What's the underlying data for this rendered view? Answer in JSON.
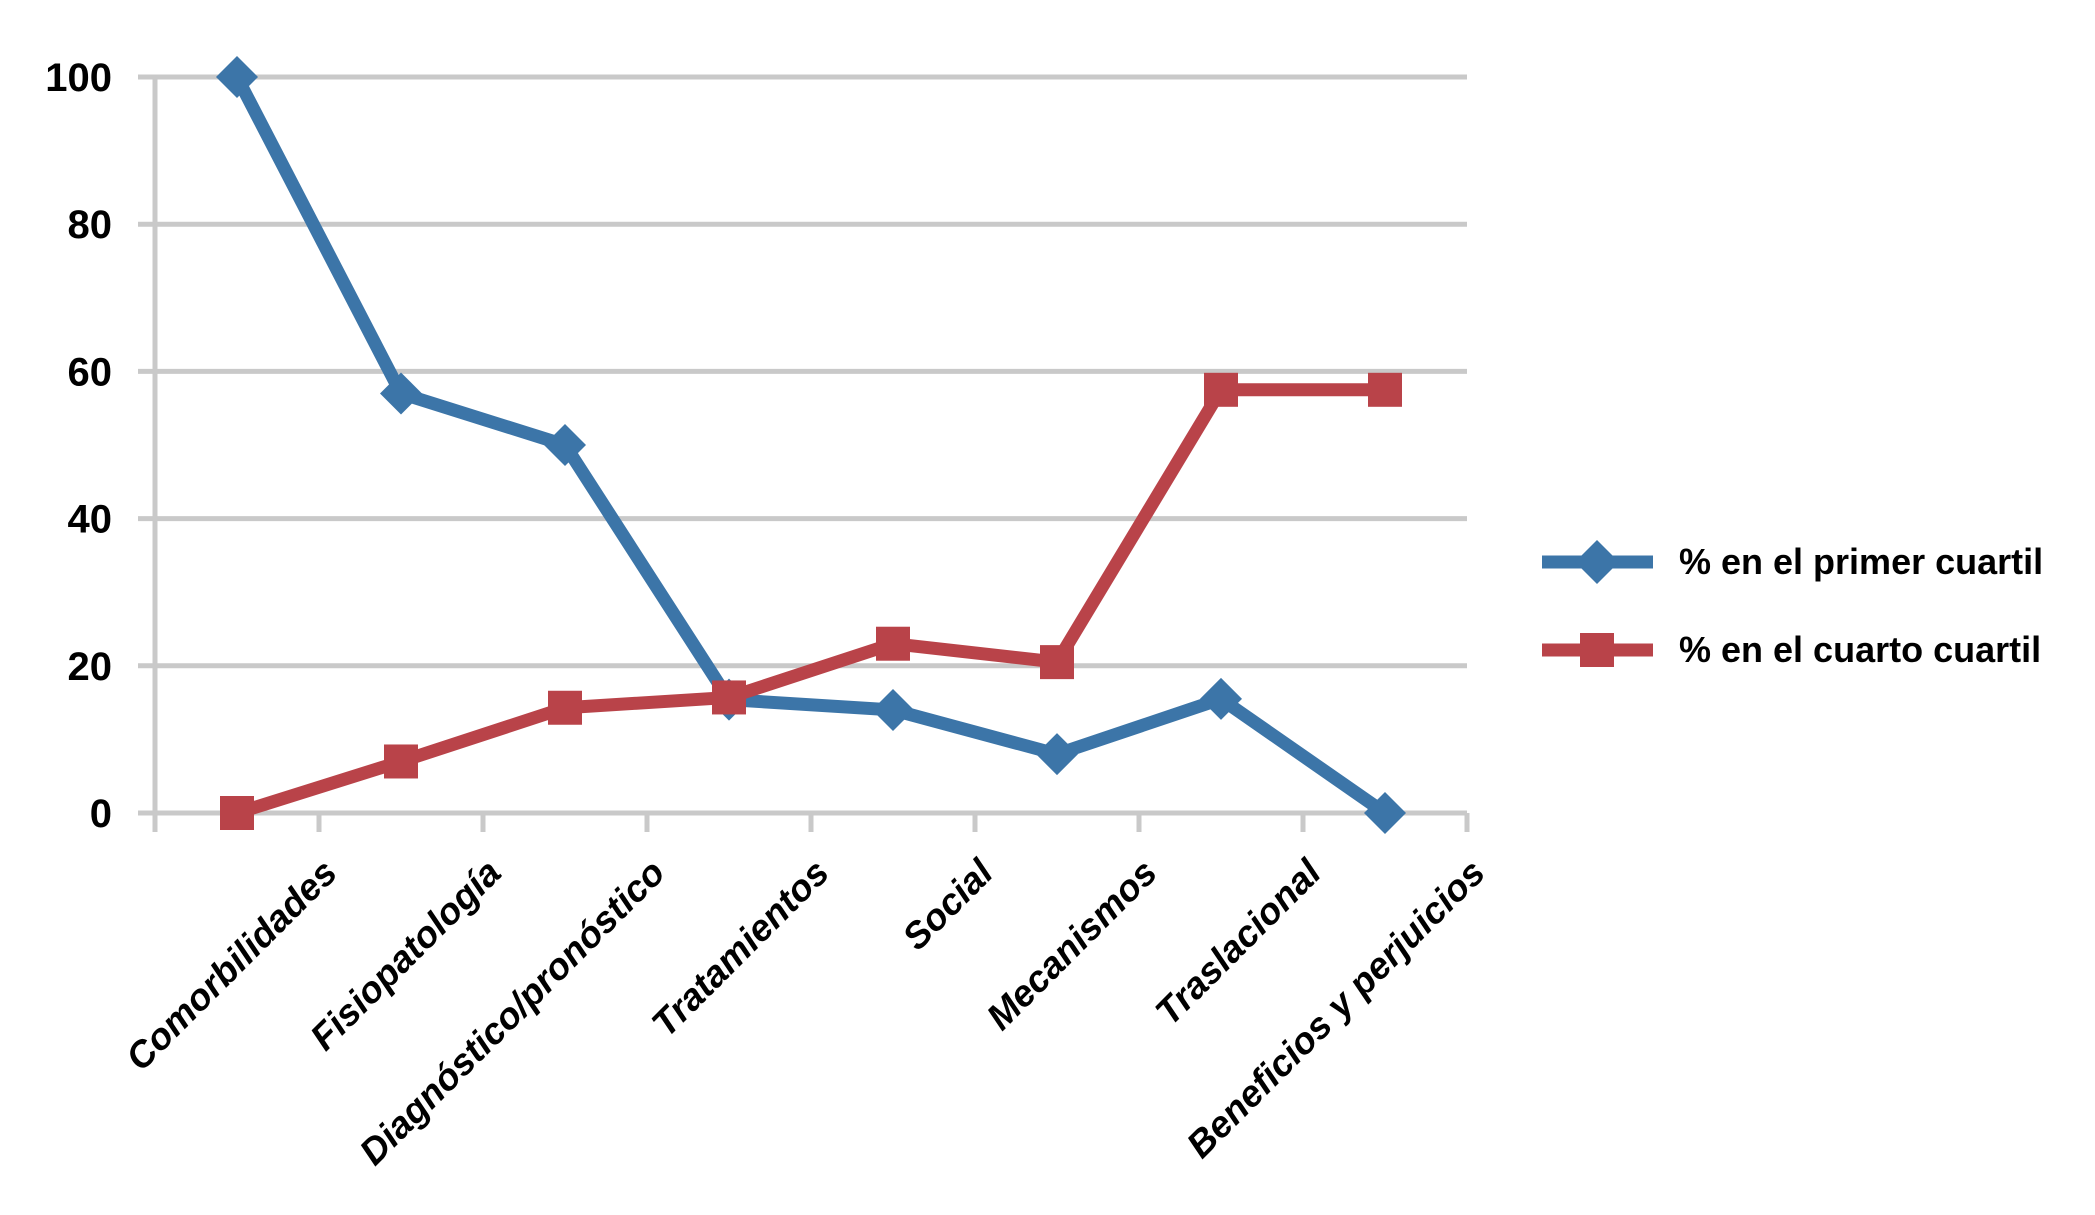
{
  "chart_data": {
    "type": "line",
    "title": "",
    "categories": [
      "Comorbilidades",
      "Fisiopatología",
      "Diagnóstico/pronóstico",
      "Tratamientos",
      "Social",
      "Mecanismos",
      "Traslacional",
      "Beneficios y perjuicios"
    ],
    "series": [
      {
        "name": "% en el primer cuartil",
        "marker": "diamond",
        "color": "#3C75A8",
        "values": [
          100,
          57,
          50,
          15.4,
          14,
          8,
          15.5,
          0
        ]
      },
      {
        "name": "% en el cuarto cuartil",
        "marker": "square",
        "color": "#B94349",
        "values": [
          0,
          7,
          14.3,
          15.7,
          23,
          20.5,
          57.5,
          57.5
        ]
      }
    ],
    "y_ticks": [
      0,
      20,
      40,
      60,
      80,
      100
    ],
    "ylim": [
      0,
      100
    ],
    "xlabel": "",
    "ylabel": "",
    "grid": true,
    "legend_position": "right-middle",
    "gridline_color": "#C9C9C9",
    "text_color": "#000000"
  }
}
